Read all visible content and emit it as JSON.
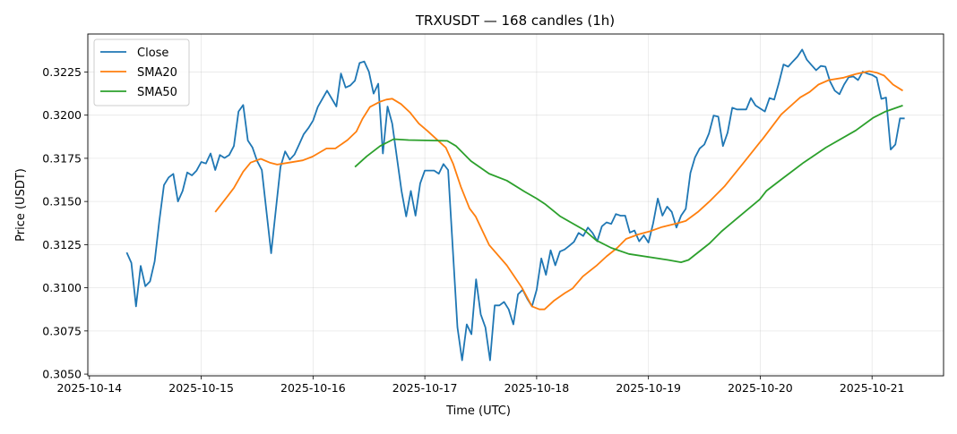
{
  "chart_data": {
    "type": "line",
    "title": "TRXUSDT — 168 candles (1h)",
    "xlabel": "Time (UTC)",
    "ylabel": "Price (USDT)",
    "x_unit": "hours since 2025-10-14 00:00 UTC",
    "xlim": [
      -0.35,
      183.35
    ],
    "ylim": [
      0.3049,
      0.3247
    ],
    "grid": true,
    "legend_position": "top-left",
    "x_ticks": [
      {
        "value": 0,
        "label": "2025-10-14"
      },
      {
        "value": 24,
        "label": "2025-10-15"
      },
      {
        "value": 48,
        "label": "2025-10-16"
      },
      {
        "value": 72,
        "label": "2025-10-17"
      },
      {
        "value": 96,
        "label": "2025-10-18"
      },
      {
        "value": 120,
        "label": "2025-10-19"
      },
      {
        "value": 144,
        "label": "2025-10-20"
      },
      {
        "value": 168,
        "label": "2025-10-21"
      }
    ],
    "y_ticks": [
      {
        "value": 0.305,
        "label": "0.3050"
      },
      {
        "value": 0.3075,
        "label": "0.3075"
      },
      {
        "value": 0.31,
        "label": "0.3100"
      },
      {
        "value": 0.3125,
        "label": "0.3125"
      },
      {
        "value": 0.315,
        "label": "0.3150"
      },
      {
        "value": 0.3175,
        "label": "0.3175"
      },
      {
        "value": 0.32,
        "label": "0.3200"
      },
      {
        "value": 0.3225,
        "label": "0.3225"
      }
    ],
    "series": [
      {
        "name": "Close",
        "color": "#1f77b4",
        "points": [
          [
            8,
            0.31205
          ],
          [
            9,
            0.31144
          ],
          [
            10,
            0.30892
          ],
          [
            11,
            0.31127
          ],
          [
            12,
            0.31009
          ],
          [
            13,
            0.31037
          ],
          [
            14,
            0.31153
          ],
          [
            15,
            0.31387
          ],
          [
            16,
            0.31595
          ],
          [
            17,
            0.31639
          ],
          [
            18,
            0.3166
          ],
          [
            19,
            0.315
          ],
          [
            20,
            0.31561
          ],
          [
            21,
            0.31668
          ],
          [
            22,
            0.31651
          ],
          [
            23,
            0.31679
          ],
          [
            24,
            0.31729
          ],
          [
            25,
            0.3172
          ],
          [
            26,
            0.31778
          ],
          [
            27,
            0.31682
          ],
          [
            28,
            0.31769
          ],
          [
            29,
            0.31752
          ],
          [
            30,
            0.31769
          ],
          [
            31,
            0.31821
          ],
          [
            32,
            0.32021
          ],
          [
            33,
            0.32059
          ],
          [
            34,
            0.31853
          ],
          [
            35,
            0.31812
          ],
          [
            36,
            0.31734
          ],
          [
            37,
            0.31682
          ],
          [
            39,
            0.312
          ],
          [
            41,
            0.317
          ],
          [
            42,
            0.3179
          ],
          [
            43,
            0.31743
          ],
          [
            44,
            0.31772
          ],
          [
            45,
            0.3183
          ],
          [
            46,
            0.3189
          ],
          [
            47,
            0.31925
          ],
          [
            48,
            0.31969
          ],
          [
            49,
            0.32047
          ],
          [
            51,
            0.32142
          ],
          [
            53,
            0.3205
          ],
          [
            54,
            0.32241
          ],
          [
            55,
            0.3216
          ],
          [
            56,
            0.32172
          ],
          [
            57,
            0.322
          ],
          [
            58,
            0.32302
          ],
          [
            59,
            0.32311
          ],
          [
            60,
            0.32252
          ],
          [
            61,
            0.32125
          ],
          [
            62,
            0.32182
          ],
          [
            63,
            0.31778
          ],
          [
            64,
            0.3205
          ],
          [
            65,
            0.31951
          ],
          [
            67,
            0.31561
          ],
          [
            68,
            0.31413
          ],
          [
            69,
            0.31561
          ],
          [
            70,
            0.31418
          ],
          [
            71,
            0.31604
          ],
          [
            72,
            0.31679
          ],
          [
            74,
            0.31679
          ],
          [
            75,
            0.31661
          ],
          [
            76,
            0.31717
          ],
          [
            77,
            0.31682
          ],
          [
            79,
            0.30771
          ],
          [
            80,
            0.3058
          ],
          [
            81,
            0.30788
          ],
          [
            82,
            0.30731
          ],
          [
            83,
            0.31049
          ],
          [
            84,
            0.30846
          ],
          [
            85,
            0.30771
          ],
          [
            86,
            0.3058
          ],
          [
            87,
            0.30898
          ],
          [
            88,
            0.30898
          ],
          [
            89,
            0.30918
          ],
          [
            90,
            0.30875
          ],
          [
            91,
            0.30788
          ],
          [
            92,
            0.30962
          ],
          [
            93,
            0.30988
          ],
          [
            94,
            0.30936
          ],
          [
            95,
            0.30892
          ],
          [
            96,
            0.30988
          ],
          [
            97,
            0.3117
          ],
          [
            98,
            0.31075
          ],
          [
            99,
            0.31217
          ],
          [
            100,
            0.3113
          ],
          [
            101,
            0.3121
          ],
          [
            102,
            0.31222
          ],
          [
            103,
            0.31243
          ],
          [
            104,
            0.31266
          ],
          [
            105,
            0.31318
          ],
          [
            106,
            0.313
          ],
          [
            107,
            0.31349
          ],
          [
            108,
            0.31318
          ],
          [
            109,
            0.31269
          ],
          [
            110,
            0.31356
          ],
          [
            111,
            0.31379
          ],
          [
            112,
            0.3137
          ],
          [
            113,
            0.31427
          ],
          [
            114,
            0.31418
          ],
          [
            115,
            0.31418
          ],
          [
            116,
            0.3132
          ],
          [
            117,
            0.31332
          ],
          [
            118,
            0.31269
          ],
          [
            119,
            0.31304
          ],
          [
            120,
            0.31262
          ],
          [
            121,
            0.31373
          ],
          [
            122,
            0.31517
          ],
          [
            123,
            0.31418
          ],
          [
            124,
            0.3147
          ],
          [
            125,
            0.31439
          ],
          [
            126,
            0.31349
          ],
          [
            127,
            0.31418
          ],
          [
            128,
            0.31457
          ],
          [
            129,
            0.31665
          ],
          [
            130,
            0.31755
          ],
          [
            131,
            0.31807
          ],
          [
            132,
            0.3183
          ],
          [
            133,
            0.31894
          ],
          [
            134,
            0.31998
          ],
          [
            135,
            0.31991
          ],
          [
            136,
            0.31821
          ],
          [
            137,
            0.31899
          ],
          [
            138,
            0.32043
          ],
          [
            139,
            0.32033
          ],
          [
            141,
            0.32033
          ],
          [
            142,
            0.32099
          ],
          [
            143,
            0.32056
          ],
          [
            144,
            0.32038
          ],
          [
            145,
            0.32021
          ],
          [
            146,
            0.32099
          ],
          [
            147,
            0.3209
          ],
          [
            148,
            0.32186
          ],
          [
            149,
            0.32293
          ],
          [
            150,
            0.32281
          ],
          [
            151,
            0.32311
          ],
          [
            152,
            0.32339
          ],
          [
            153,
            0.3238
          ],
          [
            154,
            0.32321
          ],
          [
            155,
            0.3229
          ],
          [
            156,
            0.3226
          ],
          [
            157,
            0.32285
          ],
          [
            158,
            0.32281
          ],
          [
            159,
            0.32194
          ],
          [
            160,
            0.32142
          ],
          [
            161,
            0.32121
          ],
          [
            162,
            0.32177
          ],
          [
            163,
            0.3222
          ],
          [
            164,
            0.32224
          ],
          [
            165,
            0.32203
          ],
          [
            166,
            0.32252
          ],
          [
            167,
            0.32241
          ],
          [
            168,
            0.32233
          ],
          [
            169,
            0.32217
          ],
          [
            170,
            0.32094
          ],
          [
            171,
            0.32102
          ],
          [
            172,
            0.31801
          ],
          [
            173,
            0.3183
          ],
          [
            174,
            0.31981
          ],
          [
            175,
            0.31981
          ]
        ]
      },
      {
        "name": "SMA20",
        "color": "#ff7f0e",
        "points": [
          [
            27,
            0.31439
          ],
          [
            28.8,
            0.315
          ],
          [
            31,
            0.31578
          ],
          [
            33,
            0.31673
          ],
          [
            34.6,
            0.31725
          ],
          [
            36.8,
            0.31747
          ],
          [
            38.7,
            0.31725
          ],
          [
            40.3,
            0.31714
          ],
          [
            42.9,
            0.31725
          ],
          [
            45.8,
            0.31738
          ],
          [
            47.9,
            0.3176
          ],
          [
            50.9,
            0.31807
          ],
          [
            52.8,
            0.31807
          ],
          [
            55.4,
            0.31856
          ],
          [
            57.3,
            0.31905
          ],
          [
            58.6,
            0.31978
          ],
          [
            60.2,
            0.32047
          ],
          [
            62.4,
            0.32078
          ],
          [
            63.7,
            0.3209
          ],
          [
            65,
            0.32095
          ],
          [
            66.9,
            0.32064
          ],
          [
            68.8,
            0.32016
          ],
          [
            70.7,
            0.31951
          ],
          [
            72.6,
            0.31908
          ],
          [
            74.6,
            0.31859
          ],
          [
            76.5,
            0.31812
          ],
          [
            78.1,
            0.31717
          ],
          [
            79.7,
            0.31587
          ],
          [
            81.6,
            0.3146
          ],
          [
            82.9,
            0.31413
          ],
          [
            85.8,
            0.31248
          ],
          [
            89.6,
            0.3113
          ],
          [
            92.8,
            0.31002
          ],
          [
            95,
            0.30892
          ],
          [
            96.6,
            0.30875
          ],
          [
            97.7,
            0.30875
          ],
          [
            99.8,
            0.30927
          ],
          [
            102.1,
            0.3097
          ],
          [
            103.7,
            0.30996
          ],
          [
            105.9,
            0.31066
          ],
          [
            108.8,
            0.31127
          ],
          [
            111,
            0.31182
          ],
          [
            113.3,
            0.31231
          ],
          [
            115.2,
            0.31283
          ],
          [
            117.8,
            0.31309
          ],
          [
            120.3,
            0.31327
          ],
          [
            122.9,
            0.31352
          ],
          [
            126.1,
            0.31373
          ],
          [
            128,
            0.31387
          ],
          [
            130.6,
            0.31439
          ],
          [
            133.1,
            0.315
          ],
          [
            136.3,
            0.31587
          ],
          [
            140.2,
            0.31717
          ],
          [
            143.9,
            0.31842
          ],
          [
            144.6,
            0.31865
          ],
          [
            148.5,
            0.32004
          ],
          [
            152.6,
            0.32103
          ],
          [
            154.6,
            0.32134
          ],
          [
            156.5,
            0.32177
          ],
          [
            158.7,
            0.32203
          ],
          [
            161.9,
            0.32217
          ],
          [
            164.5,
            0.32238
          ],
          [
            167.4,
            0.32255
          ],
          [
            169,
            0.32246
          ],
          [
            170.6,
            0.32229
          ],
          [
            172.5,
            0.32177
          ],
          [
            174.6,
            0.32142
          ]
        ]
      },
      {
        "name": "SMA50",
        "color": "#2ca02c",
        "points": [
          [
            57,
            0.317
          ],
          [
            59.5,
            0.31761
          ],
          [
            62.4,
            0.31821
          ],
          [
            65.3,
            0.31861
          ],
          [
            68.5,
            0.31856
          ],
          [
            76.8,
            0.31851
          ],
          [
            78.7,
            0.31821
          ],
          [
            81.9,
            0.31734
          ],
          [
            85.8,
            0.31661
          ],
          [
            89.6,
            0.31621
          ],
          [
            93.4,
            0.31557
          ],
          [
            96,
            0.31517
          ],
          [
            97.9,
            0.31483
          ],
          [
            101.1,
            0.31413
          ],
          [
            106.2,
            0.31335
          ],
          [
            108.8,
            0.31275
          ],
          [
            112,
            0.31231
          ],
          [
            115.8,
            0.31196
          ],
          [
            124.2,
            0.31161
          ],
          [
            127,
            0.31148
          ],
          [
            128.6,
            0.31161
          ],
          [
            133.1,
            0.31257
          ],
          [
            135.7,
            0.31327
          ],
          [
            139.5,
            0.31413
          ],
          [
            143.9,
            0.31512
          ],
          [
            145.3,
            0.31561
          ],
          [
            148.5,
            0.31627
          ],
          [
            153.3,
            0.31725
          ],
          [
            158.1,
            0.31812
          ],
          [
            164.5,
            0.31911
          ],
          [
            168.3,
            0.31986
          ],
          [
            170.9,
            0.32021
          ],
          [
            174.6,
            0.32056
          ]
        ]
      }
    ]
  }
}
